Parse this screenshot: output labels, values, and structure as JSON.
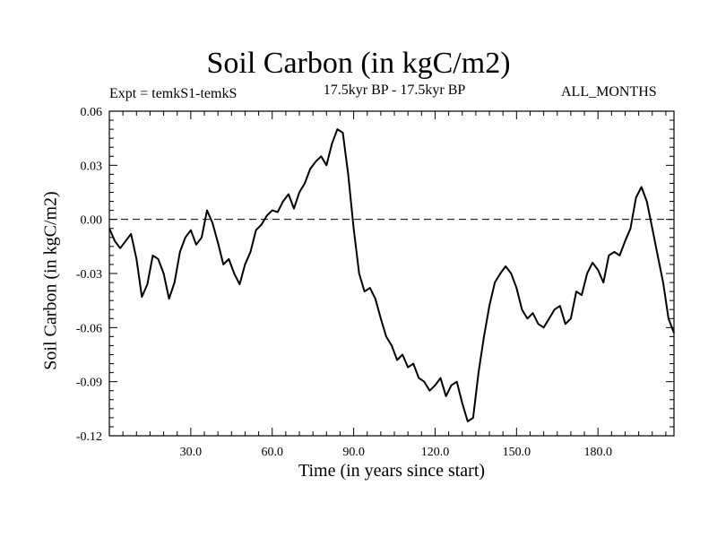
{
  "chart_data": {
    "type": "line",
    "title": "Soil Carbon (in kgC/m2)",
    "subtitle_left": "Expt = temkS1-temkS",
    "subtitle_center": "17.5kyr BP - 17.5kyr BP",
    "subtitle_right": "ALL_MONTHS",
    "xlabel": "Time (in years since start)",
    "ylabel": "Soil Carbon (in kgC/m2)",
    "xlim": [
      0,
      208
    ],
    "ylim": [
      -0.12,
      0.06
    ],
    "xticks": [
      30,
      60,
      90,
      120,
      150,
      180
    ],
    "xtick_labels": [
      "30.0",
      "60.0",
      "90.0",
      "120.0",
      "150.0",
      "180.0"
    ],
    "yticks": [
      0.06,
      0.03,
      0.0,
      -0.03,
      -0.06,
      -0.09,
      -0.12
    ],
    "ytick_labels": [
      "0.06",
      "0.03",
      "0.00",
      "-0.03",
      "-0.06",
      "-0.09",
      "-0.12"
    ],
    "reference_line": {
      "y": 0.0,
      "style": "dashed"
    },
    "series": [
      {
        "name": "Soil Carbon",
        "x": [
          0,
          2,
          4,
          6,
          8,
          10,
          12,
          14,
          16,
          18,
          20,
          22,
          24,
          26,
          28,
          30,
          32,
          34,
          36,
          38,
          40,
          42,
          44,
          46,
          48,
          50,
          52,
          54,
          56,
          58,
          60,
          62,
          64,
          66,
          68,
          70,
          72,
          74,
          76,
          78,
          80,
          82,
          84,
          86,
          88,
          90,
          92,
          94,
          96,
          98,
          100,
          102,
          104,
          106,
          108,
          110,
          112,
          114,
          116,
          118,
          120,
          122,
          124,
          126,
          128,
          130,
          132,
          134,
          136,
          138,
          140,
          142,
          144,
          146,
          148,
          150,
          152,
          154,
          156,
          158,
          160,
          162,
          164,
          166,
          168,
          170,
          172,
          174,
          176,
          178,
          180,
          182,
          184,
          186,
          188,
          190,
          192,
          194,
          196,
          198,
          200,
          202,
          204,
          206,
          208
        ],
        "y": [
          -0.005,
          -0.012,
          -0.016,
          -0.012,
          -0.008,
          -0.022,
          -0.043,
          -0.036,
          -0.02,
          -0.022,
          -0.03,
          -0.044,
          -0.035,
          -0.018,
          -0.01,
          -0.006,
          -0.014,
          -0.01,
          0.005,
          -0.002,
          -0.013,
          -0.025,
          -0.022,
          -0.03,
          -0.036,
          -0.025,
          -0.018,
          -0.006,
          -0.003,
          0.002,
          0.005,
          0.004,
          0.01,
          0.014,
          0.006,
          0.015,
          0.02,
          0.028,
          0.032,
          0.035,
          0.03,
          0.042,
          0.05,
          0.048,
          0.025,
          -0.005,
          -0.03,
          -0.04,
          -0.038,
          -0.044,
          -0.055,
          -0.065,
          -0.07,
          -0.078,
          -0.075,
          -0.082,
          -0.08,
          -0.088,
          -0.09,
          -0.095,
          -0.092,
          -0.088,
          -0.098,
          -0.092,
          -0.09,
          -0.102,
          -0.112,
          -0.11,
          -0.085,
          -0.065,
          -0.048,
          -0.035,
          -0.03,
          -0.026,
          -0.03,
          -0.038,
          -0.05,
          -0.055,
          -0.052,
          -0.058,
          -0.06,
          -0.055,
          -0.05,
          -0.048,
          -0.058,
          -0.055,
          -0.04,
          -0.042,
          -0.03,
          -0.024,
          -0.028,
          -0.035,
          -0.02,
          -0.018,
          -0.02,
          -0.012,
          -0.005,
          0.012,
          0.018,
          0.01,
          -0.005,
          -0.02,
          -0.035,
          -0.055,
          -0.063
        ]
      }
    ]
  }
}
